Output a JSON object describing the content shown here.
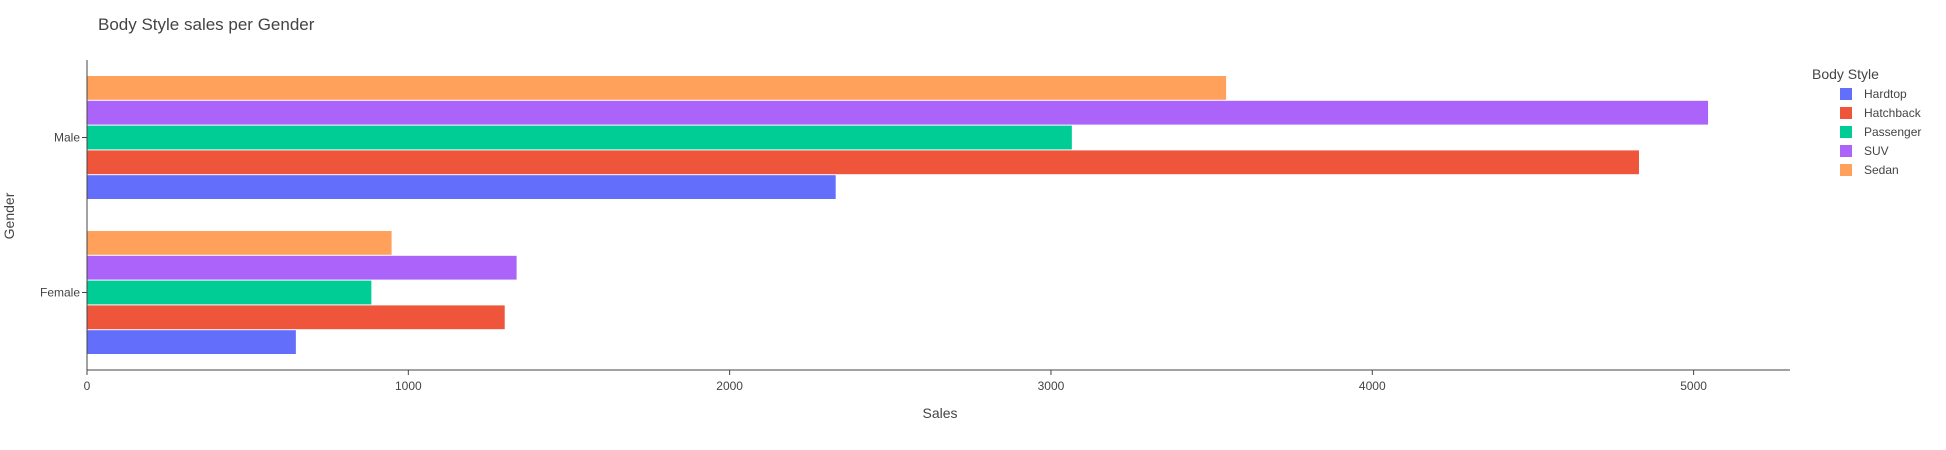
{
  "chart_data": {
    "type": "bar",
    "orientation": "horizontal",
    "title": "Body Style sales per Gender",
    "xlabel": "Sales",
    "ylabel": "Gender",
    "categories": [
      "Female",
      "Male"
    ],
    "xlim": [
      0,
      5300
    ],
    "xticks": [
      0,
      1000,
      2000,
      3000,
      4000,
      5000
    ],
    "grid": false,
    "legend_title": "Body Style",
    "legend_position": "right",
    "series": [
      {
        "name": "Hardtop",
        "color": "#636EFA",
        "values": [
          650,
          2330
        ]
      },
      {
        "name": "Hatchback",
        "color": "#EF553B",
        "values": [
          1300,
          4830
        ]
      },
      {
        "name": "Passenger",
        "color": "#00CC96",
        "values": [
          885,
          3065
        ]
      },
      {
        "name": "SUV",
        "color": "#AB63FA",
        "values": [
          1337,
          5045
        ]
      },
      {
        "name": "Sedan",
        "color": "#FFA15A",
        "values": [
          948,
          3545
        ]
      }
    ]
  }
}
